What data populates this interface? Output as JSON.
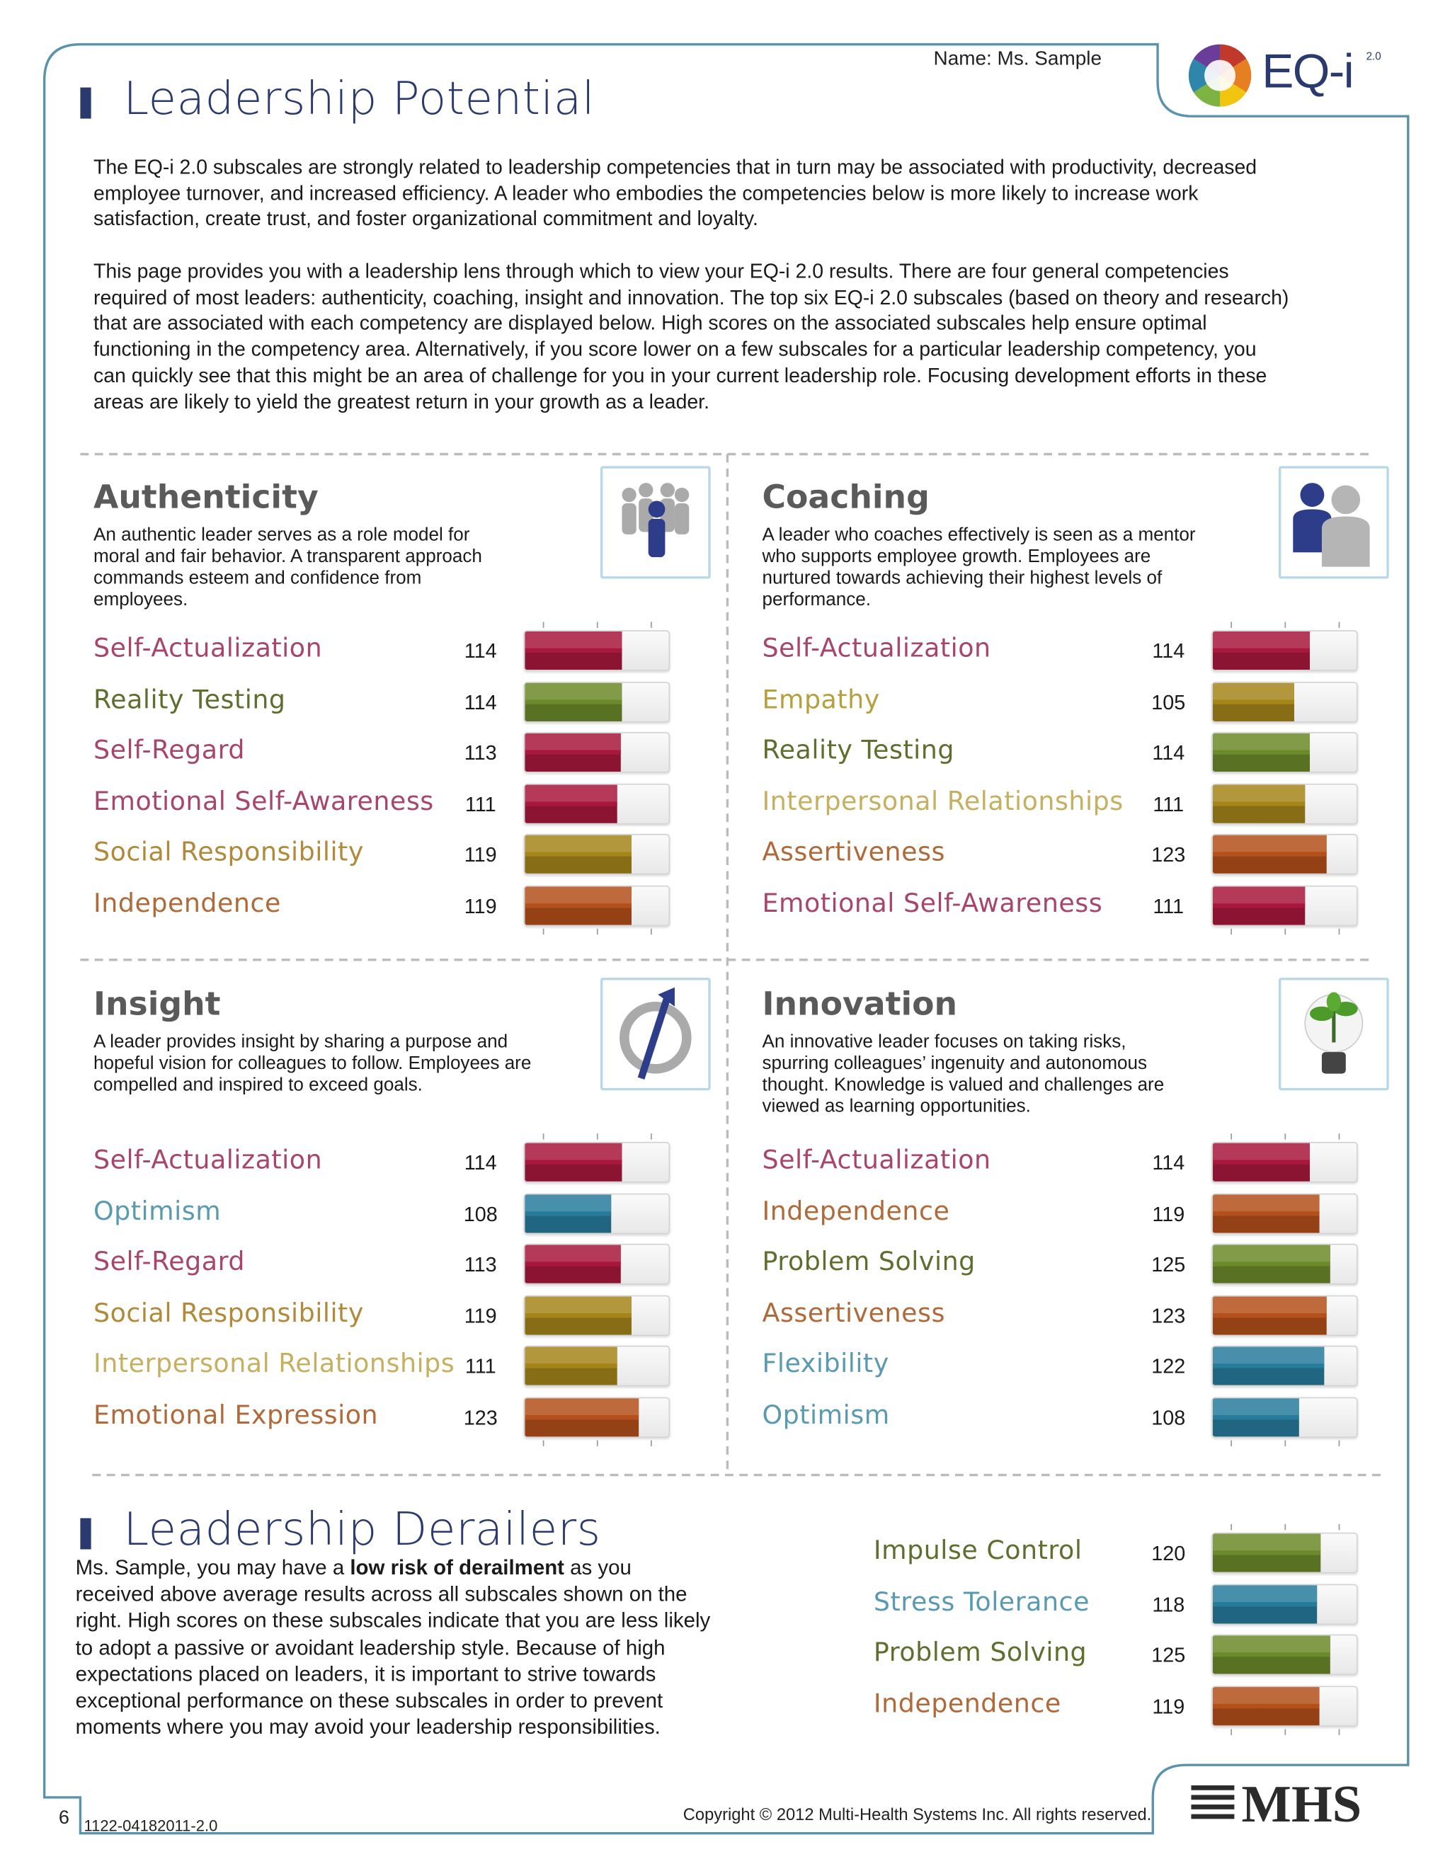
{
  "header": {
    "name": "Name: Ms. Sample",
    "title": "Leadership Potential",
    "logo": "EQ-i",
    "logo_version": "2.0"
  },
  "intro": [
    "The EQ-i 2.0 subscales are strongly related to leadership competencies that in turn may be associated with productivity, decreased employee turnover, and increased efficiency. A leader who embodies the competencies below is more likely to increase work satisfaction, create trust, and foster organizational commitment and loyalty.",
    "This page provides you with a leadership lens through which to view your EQ-i 2.0 results. There are four general competencies required of most leaders: authenticity, coaching, insight and innovation. The top six EQ-i 2.0 subscales (based on theory and research) that are associated with each competency are displayed below. High scores on the associated subscales help ensure optimal functioning in the competency area. Alternatively, if you score lower on a few subscales for a particular leadership competency, you can quickly see that this might be an area of challenge for you in your current leadership role. Focusing development efforts in these areas are likely to yield the greatest return in your growth as a leader."
  ],
  "xlim": [
    60,
    140
  ],
  "xticks": [
    70,
    100,
    130
  ],
  "competencies": [
    {
      "title": "Authenticity",
      "description": "An authentic leader serves as a role model for moral and fair behavior. A transparent approach commands esteem and confidence from employees.",
      "items": [
        {
          "name": "Self-Actualization",
          "score": 114,
          "color": "#a8183c",
          "label_color": "#a8456a"
        },
        {
          "name": "Reality Testing",
          "score": 114,
          "color": "#6b8a2a",
          "label_color": "#5e6e2e"
        },
        {
          "name": "Self-Regard",
          "score": 113,
          "color": "#a8183c",
          "label_color": "#a8456a"
        },
        {
          "name": "Emotional Self-Awareness",
          "score": 111,
          "color": "#a8183c",
          "label_color": "#a8456a"
        },
        {
          "name": "Social Responsibility",
          "score": 119,
          "color": "#a5851a",
          "label_color": "#b08a3a"
        },
        {
          "name": "Independence",
          "score": 119,
          "color": "#b4501a",
          "label_color": "#b06a3a"
        }
      ]
    },
    {
      "title": "Coaching",
      "description": "A leader who coaches effectively is seen as a mentor who supports employee growth. Employees are nurtured towards achieving their highest levels of performance.",
      "items": [
        {
          "name": "Self-Actualization",
          "score": 114,
          "color": "#a8183c",
          "label_color": "#a8456a"
        },
        {
          "name": "Empathy",
          "score": 105,
          "color": "#a5851a",
          "label_color": "#b5a040"
        },
        {
          "name": "Reality Testing",
          "score": 114,
          "color": "#6b8a2a",
          "label_color": "#5e6e2e"
        },
        {
          "name": "Interpersonal Relationships",
          "score": 111,
          "color": "#a5851a",
          "label_color": "#c4b060"
        },
        {
          "name": "Assertiveness",
          "score": 123,
          "color": "#b4501a",
          "label_color": "#b06a3a"
        },
        {
          "name": "Emotional Self-Awareness",
          "score": 111,
          "color": "#a8183c",
          "label_color": "#a8456a"
        }
      ]
    },
    {
      "title": "Insight",
      "description": "A leader provides insight by sharing a purpose and hopeful vision for colleagues to follow. Employees are compelled and inspired to exceed goals.",
      "items": [
        {
          "name": "Self-Actualization",
          "score": 114,
          "color": "#a8183c",
          "label_color": "#a8456a"
        },
        {
          "name": "Optimism",
          "score": 108,
          "color": "#277c9c",
          "label_color": "#5a9ab0"
        },
        {
          "name": "Self-Regard",
          "score": 113,
          "color": "#a8183c",
          "label_color": "#a8456a"
        },
        {
          "name": "Social Responsibility",
          "score": 119,
          "color": "#a5851a",
          "label_color": "#b08a3a"
        },
        {
          "name": "Interpersonal Relationships",
          "score": 111,
          "color": "#a5851a",
          "label_color": "#c4b060"
        },
        {
          "name": "Emotional Expression",
          "score": 123,
          "color": "#b4501a",
          "label_color": "#b06a3a"
        }
      ]
    },
    {
      "title": "Innovation",
      "description": "An innovative leader focuses on taking risks, spurring colleagues’ ingenuity and autonomous thought. Knowledge is valued and challenges are viewed as learning opportunities.",
      "items": [
        {
          "name": "Self-Actualization",
          "score": 114,
          "color": "#a8183c",
          "label_color": "#a8456a"
        },
        {
          "name": "Independence",
          "score": 119,
          "color": "#b4501a",
          "label_color": "#b06a3a"
        },
        {
          "name": "Problem Solving",
          "score": 125,
          "color": "#6b8a2a",
          "label_color": "#5e6e2e"
        },
        {
          "name": "Assertiveness",
          "score": 123,
          "color": "#b4501a",
          "label_color": "#b06a3a"
        },
        {
          "name": "Flexibility",
          "score": 122,
          "color": "#277c9c",
          "label_color": "#5a9ab0"
        },
        {
          "name": "Optimism",
          "score": 108,
          "color": "#277c9c",
          "label_color": "#5a9ab0"
        }
      ]
    }
  ],
  "derailers": {
    "title": "Leadership Derailers",
    "body": [
      "Ms. Sample, you may have a ",
      "low risk of derailment",
      " as you received above average results across all subscales shown on the right. High scores on these subscales indicate that you are less likely to adopt a passive or avoidant leadership style. Because of high expectations placed on leaders, it is important to strive towards exceptional performance on these subscales in order to prevent moments where you may avoid your leadership responsibilities."
    ],
    "items": [
      {
        "name": "Impulse Control",
        "score": 120,
        "color": "#6b8a2a",
        "label_color": "#5e6e2e"
      },
      {
        "name": "Stress Tolerance",
        "score": 118,
        "color": "#277c9c",
        "label_color": "#5a9ab0"
      },
      {
        "name": "Problem Solving",
        "score": 125,
        "color": "#6b8a2a",
        "label_color": "#5e6e2e"
      },
      {
        "name": "Independence",
        "score": 119,
        "color": "#b4501a",
        "label_color": "#b06a3a"
      }
    ]
  },
  "footer": {
    "page": "6",
    "code": "1122-04182011-2.0",
    "copyright": "Copyright © 2012 Multi-Health Systems Inc. All rights reserved.",
    "logo": "MHS"
  }
}
